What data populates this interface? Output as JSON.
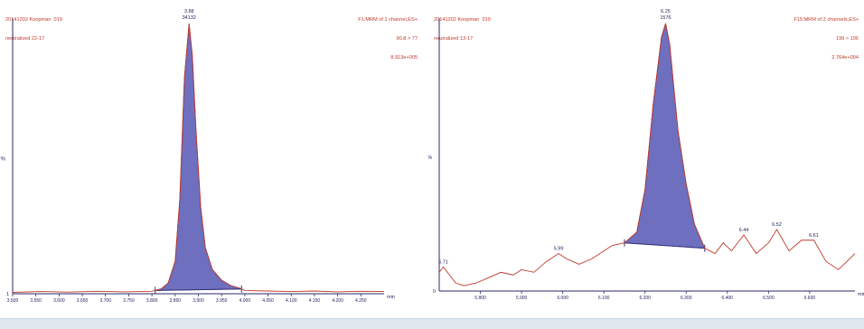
{
  "colors": {
    "header_text": "#c0392b",
    "trace": "#c0392b",
    "peak_fill": "#6f6fbf",
    "peak_outline": "#33337a",
    "axis": "#2a2a6a",
    "label": "#1f1f5f"
  },
  "chart_data": [
    {
      "type": "line",
      "header_left": [
        "20141202 Koopman  019",
        "neutralized 22-17"
      ],
      "header_right": [
        "F1:MRM of 1 channel,ES+",
        "90.8 > 77",
        "8.913e+005"
      ],
      "y_label": "%",
      "y_tick_labels": [
        "1"
      ],
      "x_unit": "min",
      "x_ticks": [
        "3.500",
        "3.550",
        "3.600",
        "3.650",
        "3.700",
        "3.750",
        "3.800",
        "3.850",
        "3.900",
        "3.950",
        "4.000",
        "4.050",
        "4.100",
        "4.150",
        "4.200",
        "4.250"
      ],
      "xlim": [
        3.5,
        4.3
      ],
      "ylim": [
        0,
        100
      ],
      "peak": {
        "rt_label": "3.88",
        "area_label": "34132",
        "apex_x": 3.88,
        "start_x": 3.807,
        "end_x": 3.993
      },
      "trace": [
        [
          3.5,
          0.5
        ],
        [
          3.56,
          0.8
        ],
        [
          3.62,
          0.6
        ],
        [
          3.68,
          0.9
        ],
        [
          3.74,
          0.7
        ],
        [
          3.8,
          0.9
        ],
        [
          3.82,
          1.8
        ],
        [
          3.835,
          4
        ],
        [
          3.85,
          12
        ],
        [
          3.86,
          35
        ],
        [
          3.87,
          80
        ],
        [
          3.88,
          100
        ],
        [
          3.887,
          88
        ],
        [
          3.895,
          60
        ],
        [
          3.905,
          32
        ],
        [
          3.915,
          17
        ],
        [
          3.93,
          9
        ],
        [
          3.95,
          5
        ],
        [
          3.97,
          3
        ],
        [
          3.99,
          2
        ],
        [
          4.0,
          1.2
        ],
        [
          4.05,
          1.0
        ],
        [
          4.1,
          0.8
        ],
        [
          4.15,
          1.0
        ],
        [
          4.2,
          0.7
        ],
        [
          4.25,
          0.9
        ],
        [
          4.3,
          0.8
        ]
      ]
    },
    {
      "type": "line",
      "header_left": [
        "20141202 Koopman  019",
        "neutralized 13-17"
      ],
      "header_right": [
        "F15:MRM of 2 channels,ES+",
        "199 > 106",
        "2.764e+004"
      ],
      "y_label": "%",
      "y_tick_labels": [
        "0"
      ],
      "x_unit": "min",
      "x_ticks": [
        "5.800",
        "5.900",
        "6.000",
        "6.100",
        "6.200",
        "6.300",
        "6.400",
        "6.500",
        "6.600"
      ],
      "xlim": [
        5.7,
        6.71
      ],
      "ylim": [
        0,
        100
      ],
      "peak": {
        "rt_label": "6.25",
        "area_label": "1576",
        "apex_x": 6.25,
        "start_x": 6.15,
        "end_x": 6.345
      },
      "peak_labels": [
        {
          "label": "5.71",
          "x": 5.71
        },
        {
          "label": "5.99",
          "x": 5.99
        },
        {
          "label": "6.44",
          "x": 6.44
        },
        {
          "label": "6.52",
          "x": 6.52
        },
        {
          "label": "6.61",
          "x": 6.61
        }
      ],
      "trace": [
        [
          5.7,
          7
        ],
        [
          5.71,
          9
        ],
        [
          5.725,
          6
        ],
        [
          5.74,
          3
        ],
        [
          5.76,
          2
        ],
        [
          5.79,
          3
        ],
        [
          5.82,
          5
        ],
        [
          5.85,
          7
        ],
        [
          5.88,
          6
        ],
        [
          5.9,
          8
        ],
        [
          5.93,
          7
        ],
        [
          5.96,
          11
        ],
        [
          5.99,
          14
        ],
        [
          6.01,
          12
        ],
        [
          6.04,
          10
        ],
        [
          6.07,
          12
        ],
        [
          6.1,
          15
        ],
        [
          6.12,
          17
        ],
        [
          6.15,
          18
        ],
        [
          6.18,
          22
        ],
        [
          6.2,
          38
        ],
        [
          6.22,
          70
        ],
        [
          6.24,
          95
        ],
        [
          6.25,
          100
        ],
        [
          6.26,
          92
        ],
        [
          6.28,
          60
        ],
        [
          6.3,
          40
        ],
        [
          6.32,
          25
        ],
        [
          6.345,
          16
        ],
        [
          6.37,
          14
        ],
        [
          6.39,
          18
        ],
        [
          6.41,
          15
        ],
        [
          6.44,
          21
        ],
        [
          6.47,
          14
        ],
        [
          6.5,
          18
        ],
        [
          6.52,
          23
        ],
        [
          6.55,
          15
        ],
        [
          6.58,
          19
        ],
        [
          6.61,
          19
        ],
        [
          6.64,
          11
        ],
        [
          6.67,
          8
        ],
        [
          6.71,
          14
        ]
      ]
    }
  ]
}
